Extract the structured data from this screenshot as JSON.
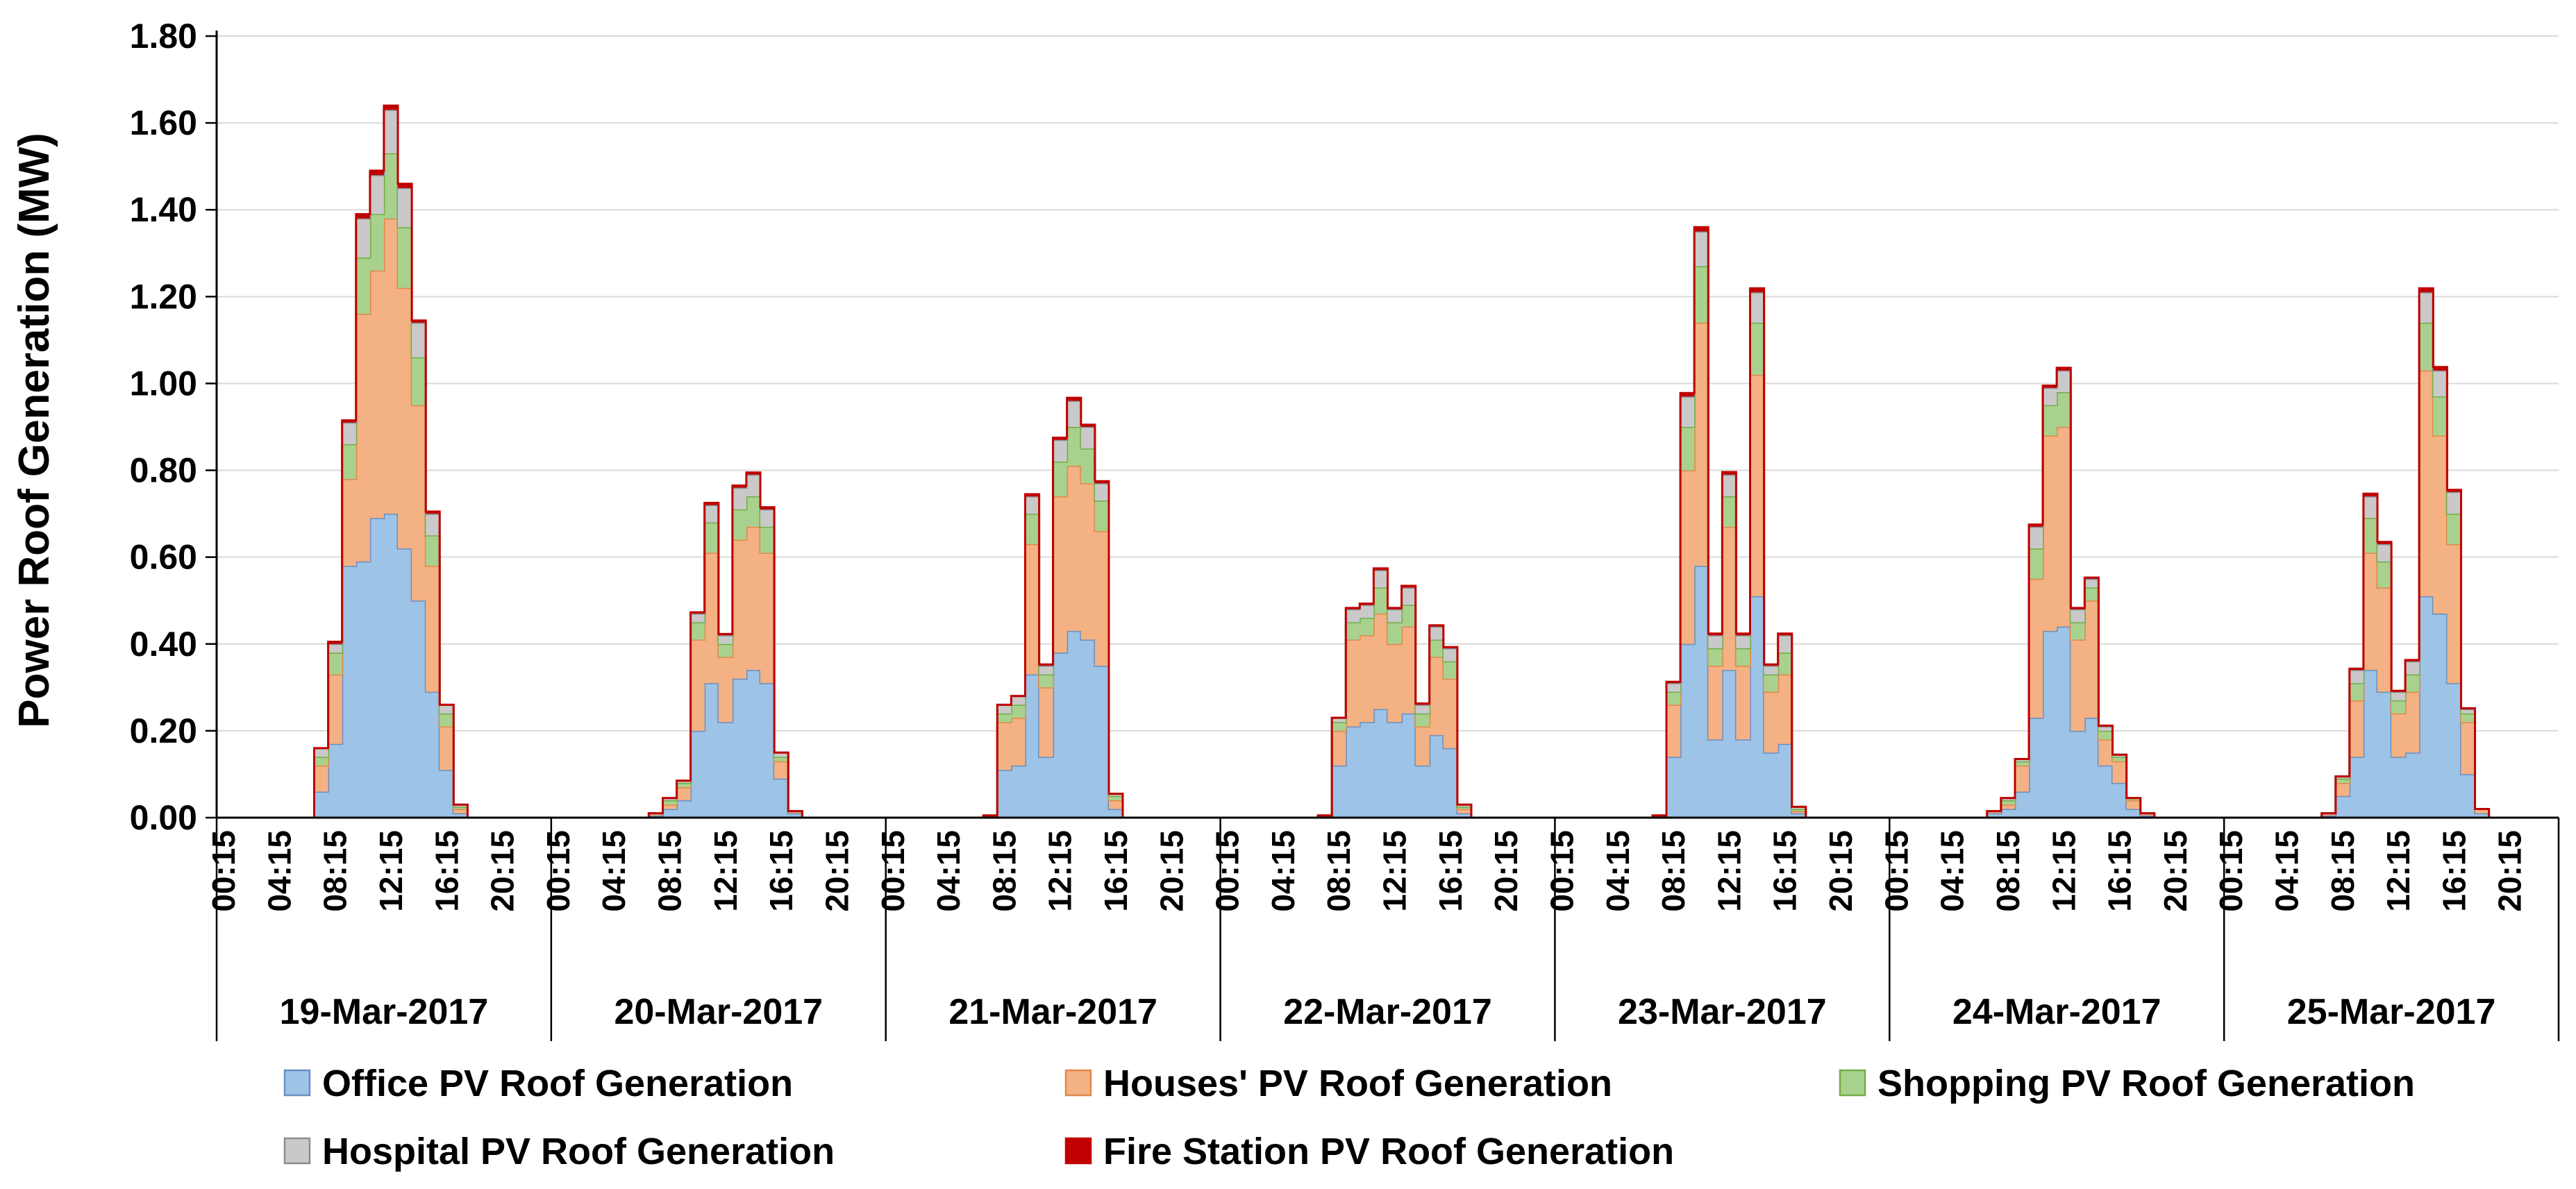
{
  "chart_data": {
    "type": "area",
    "stacked": true,
    "step": true,
    "title": "",
    "xlabel": "",
    "ylabel": "Power Roof Generation (MW)",
    "ylim": [
      0,
      1.8
    ],
    "yticks": [
      "0.00",
      "0.20",
      "0.40",
      "0.60",
      "0.80",
      "1.00",
      "1.20",
      "1.40",
      "1.60",
      "1.80"
    ],
    "hour_ticks": [
      "00:15",
      "04:15",
      "08:15",
      "12:15",
      "16:15",
      "20:15"
    ],
    "days": [
      "19-Mar-2017",
      "20-Mar-2017",
      "21-Mar-2017",
      "22-Mar-2017",
      "23-Mar-2017",
      "24-Mar-2017",
      "25-Mar-2017"
    ],
    "interval": "1 hour (steps at HH:15)",
    "hours_of_day": [
      0,
      1,
      2,
      3,
      4,
      5,
      6,
      7,
      8,
      9,
      10,
      11,
      12,
      13,
      14,
      15,
      16,
      17,
      18,
      19,
      20,
      21,
      22,
      23
    ],
    "legend_position": "bottom",
    "grid": true,
    "series": [
      {
        "name": "Office PV Roof Generation",
        "color": "#9DC3E6",
        "edge": "#6A8FC2",
        "values": [
          [
            0,
            0,
            0,
            0,
            0,
            0,
            0,
            0.06,
            0.17,
            0.58,
            0.59,
            0.69,
            0.7,
            0.62,
            0.5,
            0.29,
            0.11,
            0.01,
            0,
            0,
            0,
            0,
            0,
            0
          ],
          [
            0,
            0,
            0,
            0,
            0,
            0,
            0,
            0.005,
            0.02,
            0.04,
            0.2,
            0.31,
            0.22,
            0.32,
            0.34,
            0.31,
            0.09,
            0.01,
            0,
            0,
            0,
            0,
            0,
            0
          ],
          [
            0,
            0,
            0,
            0,
            0,
            0,
            0,
            0.005,
            0.11,
            0.12,
            0.33,
            0.14,
            0.38,
            0.43,
            0.41,
            0.35,
            0.02,
            0,
            0,
            0,
            0,
            0,
            0,
            0
          ],
          [
            0,
            0,
            0,
            0,
            0,
            0,
            0,
            0.005,
            0.12,
            0.21,
            0.22,
            0.25,
            0.22,
            0.24,
            0.12,
            0.19,
            0.16,
            0.01,
            0,
            0,
            0,
            0,
            0,
            0
          ],
          [
            0,
            0,
            0,
            0,
            0,
            0,
            0,
            0.005,
            0.14,
            0.4,
            0.58,
            0.18,
            0.34,
            0.18,
            0.51,
            0.15,
            0.17,
            0.01,
            0,
            0,
            0,
            0,
            0,
            0
          ],
          [
            0,
            0,
            0,
            0,
            0,
            0,
            0,
            0.01,
            0.02,
            0.06,
            0.23,
            0.43,
            0.44,
            0.2,
            0.23,
            0.12,
            0.08,
            0.02,
            0.005,
            0,
            0,
            0,
            0,
            0
          ],
          [
            0,
            0,
            0,
            0,
            0,
            0,
            0,
            0.005,
            0.05,
            0.14,
            0.34,
            0.29,
            0.14,
            0.15,
            0.51,
            0.47,
            0.31,
            0.1,
            0.01,
            0,
            0,
            0,
            0,
            0
          ]
        ]
      },
      {
        "name": "Houses' PV  Roof Generation",
        "color": "#F4B183",
        "edge": "#E1884A",
        "values": [
          [
            0,
            0,
            0,
            0,
            0,
            0,
            0,
            0.06,
            0.16,
            0.2,
            0.57,
            0.57,
            0.68,
            0.6,
            0.45,
            0.29,
            0.1,
            0.01,
            0,
            0,
            0,
            0,
            0,
            0
          ],
          [
            0,
            0,
            0,
            0,
            0,
            0,
            0,
            0.005,
            0.01,
            0.03,
            0.21,
            0.3,
            0.15,
            0.32,
            0.33,
            0.3,
            0.04,
            0.005,
            0,
            0,
            0,
            0,
            0,
            0
          ],
          [
            0,
            0,
            0,
            0,
            0,
            0,
            0,
            0,
            0.11,
            0.11,
            0.3,
            0.16,
            0.36,
            0.38,
            0.36,
            0.31,
            0.02,
            0,
            0,
            0,
            0,
            0,
            0,
            0
          ],
          [
            0,
            0,
            0,
            0,
            0,
            0,
            0,
            0,
            0.08,
            0.2,
            0.2,
            0.22,
            0.18,
            0.2,
            0.09,
            0.18,
            0.16,
            0.01,
            0,
            0,
            0,
            0,
            0,
            0
          ],
          [
            0,
            0,
            0,
            0,
            0,
            0,
            0,
            0,
            0.12,
            0.4,
            0.56,
            0.17,
            0.33,
            0.17,
            0.51,
            0.14,
            0.16,
            0.005,
            0,
            0,
            0,
            0,
            0,
            0
          ],
          [
            0,
            0,
            0,
            0,
            0,
            0,
            0,
            0.005,
            0.01,
            0.06,
            0.32,
            0.45,
            0.46,
            0.21,
            0.27,
            0.06,
            0.05,
            0.02,
            0.005,
            0,
            0,
            0,
            0,
            0
          ],
          [
            0,
            0,
            0,
            0,
            0,
            0,
            0,
            0.005,
            0.03,
            0.13,
            0.27,
            0.24,
            0.1,
            0.14,
            0.52,
            0.41,
            0.32,
            0.12,
            0.01,
            0,
            0,
            0,
            0,
            0
          ]
        ]
      },
      {
        "name": "Shopping  PV  Roof Generation",
        "color": "#A9D18E",
        "edge": "#70AD47",
        "values": [
          [
            0,
            0,
            0,
            0,
            0,
            0,
            0,
            0.02,
            0.05,
            0.08,
            0.13,
            0.13,
            0.15,
            0.14,
            0.11,
            0.07,
            0.03,
            0.005,
            0,
            0,
            0,
            0,
            0,
            0
          ],
          [
            0,
            0,
            0,
            0,
            0,
            0,
            0,
            0,
            0.01,
            0.01,
            0.04,
            0.07,
            0.03,
            0.07,
            0.07,
            0.06,
            0.01,
            0,
            0,
            0,
            0,
            0,
            0,
            0
          ],
          [
            0,
            0,
            0,
            0,
            0,
            0,
            0,
            0,
            0.02,
            0.03,
            0.07,
            0.03,
            0.08,
            0.09,
            0.08,
            0.07,
            0.01,
            0,
            0,
            0,
            0,
            0,
            0,
            0
          ],
          [
            0,
            0,
            0,
            0,
            0,
            0,
            0,
            0,
            0.02,
            0.04,
            0.04,
            0.06,
            0.05,
            0.05,
            0.03,
            0.04,
            0.04,
            0.005,
            0,
            0,
            0,
            0,
            0,
            0
          ],
          [
            0,
            0,
            0,
            0,
            0,
            0,
            0,
            0,
            0.03,
            0.1,
            0.13,
            0.04,
            0.07,
            0.04,
            0.12,
            0.04,
            0.05,
            0.005,
            0,
            0,
            0,
            0,
            0,
            0
          ],
          [
            0,
            0,
            0,
            0,
            0,
            0,
            0,
            0,
            0.01,
            0.01,
            0.07,
            0.07,
            0.08,
            0.04,
            0.03,
            0.02,
            0.01,
            0.005,
            0,
            0,
            0,
            0,
            0,
            0
          ],
          [
            0,
            0,
            0,
            0,
            0,
            0,
            0,
            0,
            0.01,
            0.04,
            0.08,
            0.06,
            0.03,
            0.04,
            0.11,
            0.09,
            0.07,
            0.02,
            0,
            0,
            0,
            0,
            0,
            0
          ]
        ]
      },
      {
        "name": "Hospital  PV  Roof Generation",
        "color": "#C9C9C9",
        "edge": "#8C8C8C",
        "values": [
          [
            0,
            0,
            0,
            0,
            0,
            0,
            0,
            0.02,
            0.02,
            0.05,
            0.09,
            0.09,
            0.1,
            0.09,
            0.08,
            0.05,
            0.02,
            0.005,
            0,
            0,
            0,
            0,
            0,
            0
          ],
          [
            0,
            0,
            0,
            0,
            0,
            0,
            0,
            0,
            0.005,
            0.005,
            0.02,
            0.04,
            0.02,
            0.05,
            0.05,
            0.04,
            0.01,
            0,
            0,
            0,
            0,
            0,
            0,
            0
          ],
          [
            0,
            0,
            0,
            0,
            0,
            0,
            0,
            0,
            0.02,
            0.02,
            0.04,
            0.02,
            0.05,
            0.06,
            0.05,
            0.04,
            0.005,
            0,
            0,
            0,
            0,
            0,
            0,
            0
          ],
          [
            0,
            0,
            0,
            0,
            0,
            0,
            0,
            0,
            0.01,
            0.03,
            0.03,
            0.04,
            0.03,
            0.04,
            0.02,
            0.03,
            0.03,
            0.005,
            0,
            0,
            0,
            0,
            0,
            0
          ],
          [
            0,
            0,
            0,
            0,
            0,
            0,
            0,
            0,
            0.02,
            0.07,
            0.08,
            0.03,
            0.05,
            0.03,
            0.07,
            0.02,
            0.04,
            0.005,
            0,
            0,
            0,
            0,
            0,
            0
          ],
          [
            0,
            0,
            0,
            0,
            0,
            0,
            0,
            0,
            0.005,
            0.005,
            0.05,
            0.04,
            0.05,
            0.03,
            0.02,
            0.01,
            0.005,
            0,
            0,
            0,
            0,
            0,
            0,
            0
          ],
          [
            0,
            0,
            0,
            0,
            0,
            0,
            0,
            0,
            0.005,
            0.03,
            0.05,
            0.04,
            0.02,
            0.03,
            0.07,
            0.06,
            0.05,
            0.01,
            0,
            0,
            0,
            0,
            0,
            0
          ]
        ]
      },
      {
        "name": "Fire Station  PV  Roof Generation",
        "color": "#C00000",
        "edge": "#C00000",
        "values": [
          [
            0,
            0,
            0,
            0,
            0,
            0,
            0,
            0,
            0.005,
            0.005,
            0.01,
            0.01,
            0.01,
            0.01,
            0.005,
            0.005,
            0,
            0,
            0,
            0,
            0,
            0,
            0,
            0
          ],
          [
            0,
            0,
            0,
            0,
            0,
            0,
            0,
            0,
            0,
            0,
            0.003,
            0.005,
            0.003,
            0.005,
            0.005,
            0.005,
            0,
            0,
            0,
            0,
            0,
            0,
            0,
            0
          ],
          [
            0,
            0,
            0,
            0,
            0,
            0,
            0,
            0,
            0,
            0,
            0.005,
            0.003,
            0.005,
            0.007,
            0.005,
            0.005,
            0,
            0,
            0,
            0,
            0,
            0,
            0,
            0
          ],
          [
            0,
            0,
            0,
            0,
            0,
            0,
            0,
            0,
            0,
            0.003,
            0.003,
            0.004,
            0.003,
            0.004,
            0.003,
            0.003,
            0.003,
            0,
            0,
            0,
            0,
            0,
            0,
            0
          ],
          [
            0,
            0,
            0,
            0,
            0,
            0,
            0,
            0,
            0.003,
            0.008,
            0.01,
            0.004,
            0.006,
            0.004,
            0.009,
            0.003,
            0.004,
            0,
            0,
            0,
            0,
            0,
            0,
            0
          ],
          [
            0,
            0,
            0,
            0,
            0,
            0,
            0,
            0,
            0,
            0,
            0.005,
            0.005,
            0.006,
            0.003,
            0.003,
            0.002,
            0,
            0,
            0,
            0,
            0,
            0,
            0,
            0
          ],
          [
            0,
            0,
            0,
            0,
            0,
            0,
            0,
            0,
            0,
            0.003,
            0.006,
            0.005,
            0.002,
            0.003,
            0.009,
            0.008,
            0.005,
            0.002,
            0,
            0,
            0,
            0,
            0,
            0
          ]
        ]
      }
    ]
  }
}
